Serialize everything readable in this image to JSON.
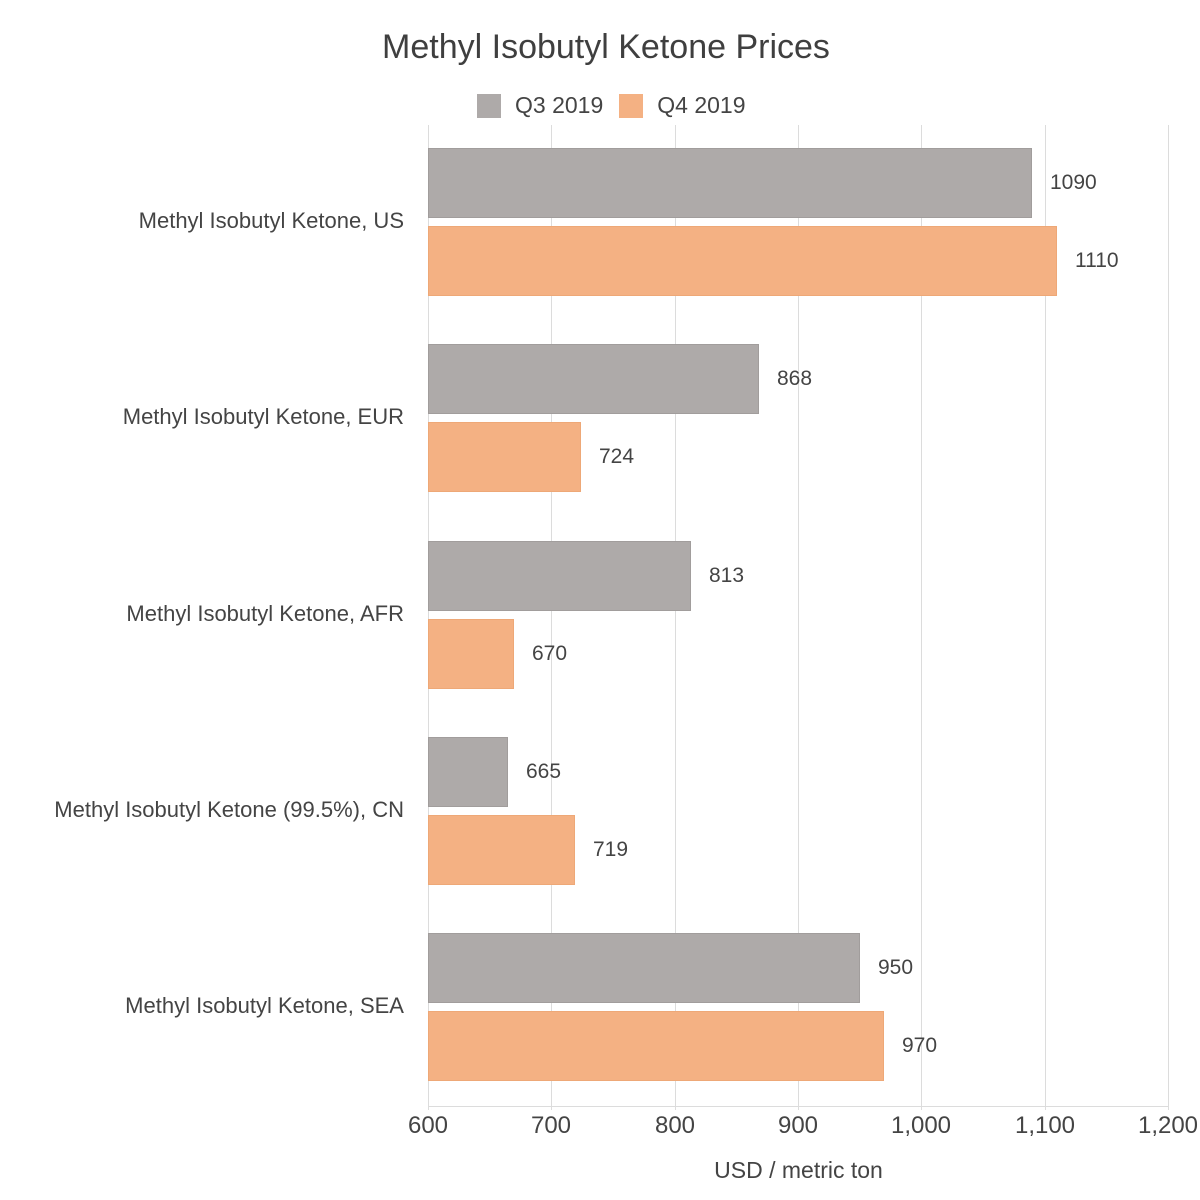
{
  "chart_data": {
    "type": "bar",
    "orientation": "horizontal",
    "title": "Methyl Isobutyl Ketone Prices",
    "xlabel": "USD / metric ton",
    "ylabel": "",
    "xlim": [
      600,
      1200
    ],
    "xticks": [
      "600",
      "700",
      "800",
      "900",
      "1,000",
      "1,100",
      "1,200"
    ],
    "grid": true,
    "legend_position": "top",
    "categories": [
      "Methyl Isobutyl Ketone, US",
      "Methyl Isobutyl Ketone, EUR",
      "Methyl Isobutyl Ketone, AFR",
      "Methyl Isobutyl Ketone (99.5%), CN",
      "Methyl Isobutyl Ketone, SEA"
    ],
    "series": [
      {
        "name": "Q3 2019",
        "color": "#aeaaa9",
        "values": [
          1090,
          868,
          813,
          665,
          950
        ]
      },
      {
        "name": "Q4 2019",
        "color": "#f4b183",
        "values": [
          1110,
          724,
          670,
          719,
          970
        ]
      }
    ]
  },
  "labels": {
    "title": "Methyl Isobutyl Ketone Prices",
    "xlabel": "USD / metric ton",
    "legend": [
      "Q3 2019",
      "Q4 2019"
    ],
    "ticks": [
      "600",
      "700",
      "800",
      "900",
      "1,000",
      "1,100",
      "1,200"
    ],
    "categories": [
      "Methyl Isobutyl Ketone, US",
      "Methyl Isobutyl Ketone, EUR",
      "Methyl Isobutyl Ketone, AFR",
      "Methyl Isobutyl Ketone (99.5%), CN",
      "Methyl Isobutyl Ketone, SEA"
    ],
    "q3_values": [
      "1090",
      "868",
      "813",
      "665",
      "950"
    ],
    "q4_values": [
      "1110",
      "724",
      "670",
      "719",
      "970"
    ]
  }
}
